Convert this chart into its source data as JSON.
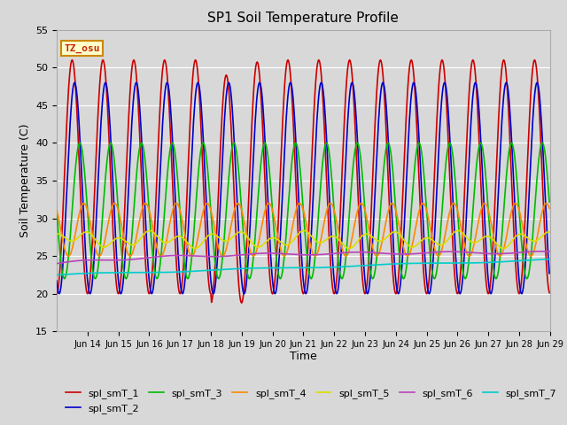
{
  "title": "SP1 Soil Temperature Profile",
  "xlabel": "Time",
  "ylabel": "Soil Temperature (C)",
  "ylim": [
    15,
    55
  ],
  "yticks": [
    15,
    20,
    25,
    30,
    35,
    40,
    45,
    50,
    55
  ],
  "xtick_labels": [
    "Jun 14",
    "Jun 15",
    "Jun 16",
    "Jun 17",
    "Jun 18",
    "Jun 19",
    "Jun 20",
    "Jun 21",
    "Jun 22",
    "Jun 23",
    "Jun 24",
    "Jun 25",
    "Jun 26",
    "Jun 27",
    "Jun 28",
    "Jun 29"
  ],
  "annotation_text": "TZ_osu",
  "annotation_color": "#cc2200",
  "annotation_bg": "#ffffcc",
  "annotation_border": "#cc8800",
  "series_colors": {
    "spl_smT_1": "#cc0000",
    "spl_smT_2": "#0000cc",
    "spl_smT_3": "#00bb00",
    "spl_smT_4": "#ff8800",
    "spl_smT_5": "#dddd00",
    "spl_smT_6": "#bb44bb",
    "spl_smT_7": "#00cccc"
  },
  "bg_color": "#d8d8d8",
  "plot_bg_color": "#d8d8d8",
  "grid_color": "#ffffff",
  "linewidth": 1.2,
  "num_days": 16,
  "pts_per_day": 48
}
